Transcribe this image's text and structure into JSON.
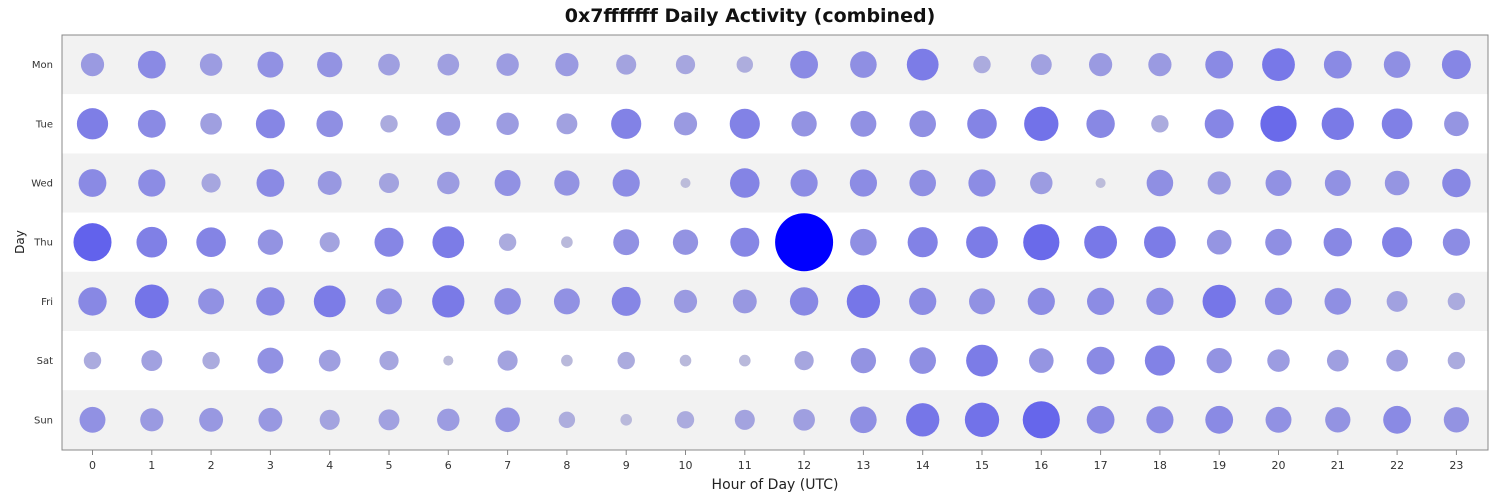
{
  "chart_data": {
    "type": "scatter",
    "subtype": "bubble-punchcard",
    "title": "0x7fffffff Daily Activity (combined)",
    "xlabel": "Hour of Day (UTC)",
    "ylabel": "Day",
    "x": [
      0,
      1,
      2,
      3,
      4,
      5,
      6,
      7,
      8,
      9,
      10,
      11,
      12,
      13,
      14,
      15,
      16,
      17,
      18,
      19,
      20,
      21,
      22,
      23
    ],
    "days": [
      "Mon",
      "Tue",
      "Wed",
      "Thu",
      "Fri",
      "Sat",
      "Sun"
    ],
    "grid": false,
    "legend": "none",
    "colors": {
      "low": "#c8c8d8",
      "high": "#0000ff",
      "band": "#f2f2f2",
      "frame": "#888888"
    },
    "values": [
      [
        16,
        23,
        15,
        20,
        19,
        14,
        14,
        15,
        16,
        12,
        11,
        8,
        23,
        21,
        30,
        9,
        13,
        16,
        16,
        23,
        32,
        23,
        21,
        25
      ],
      [
        29,
        23,
        14,
        25,
        21,
        9,
        17,
        15,
        13,
        27,
        16,
        27,
        19,
        20,
        21,
        26,
        35,
        24,
        9,
        25,
        39,
        31,
        28,
        18
      ],
      [
        23,
        22,
        11,
        23,
        17,
        12,
        15,
        20,
        19,
        22,
        3,
        26,
        22,
        22,
        21,
        22,
        15,
        3,
        21,
        16,
        20,
        20,
        18,
        24
      ],
      [
        43,
        28,
        26,
        19,
        12,
        25,
        30,
        9,
        4,
        20,
        19,
        25,
        100,
        21,
        27,
        30,
        39,
        32,
        30,
        18,
        21,
        24,
        27,
        22
      ],
      [
        24,
        34,
        20,
        24,
        30,
        20,
        31,
        21,
        20,
        25,
        16,
        17,
        24,
        33,
        22,
        20,
        22,
        22,
        22,
        33,
        22,
        21,
        13,
        9
      ],
      [
        9,
        13,
        9,
        20,
        14,
        11,
        3,
        12,
        4,
        9,
        4,
        4,
        11,
        19,
        21,
        30,
        18,
        23,
        27,
        19,
        15,
        14,
        14,
        9
      ],
      [
        20,
        16,
        17,
        17,
        12,
        13,
        15,
        18,
        8,
        4,
        9,
        12,
        14,
        21,
        33,
        35,
        41,
        23,
        22,
        23,
        20,
        19,
        23,
        19
      ]
    ]
  }
}
